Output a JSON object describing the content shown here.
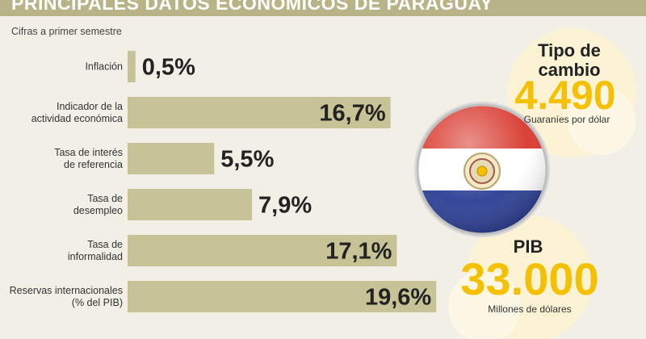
{
  "header": {
    "title": "PRINCIPALES DATOS ECONÓMICOS DE PARAGUAY"
  },
  "subtitle": "Cifras a primer semestre",
  "chart_data": {
    "type": "bar",
    "orientation": "horizontal",
    "categories": [
      [
        "Inflación"
      ],
      [
        "Indicador de la",
        "actividad económica"
      ],
      [
        "Tasa de interés",
        "de referencia"
      ],
      [
        "Tasa de",
        "desempleo"
      ],
      [
        "Tasa de",
        "informalidad"
      ],
      [
        "Reservas internacionales",
        "(% del PIB)"
      ]
    ],
    "values": [
      0.5,
      16.7,
      5.5,
      7.9,
      17.1,
      19.6
    ],
    "value_labels": [
      "0,5%",
      "16,7%",
      "5,5%",
      "7,9%",
      "17,1%",
      "19,6%"
    ],
    "bar_color": "#c8c396"
  },
  "exchange_rate": {
    "title_line1": "Tipo de",
    "title_line2": "cambio",
    "value": "4.490",
    "unit": "Guaraníes por dólar"
  },
  "gdp": {
    "title": "PIB",
    "value": "33.000",
    "unit": "Millones de dólares"
  },
  "colors": {
    "header": "#b9b487",
    "background": "#f1efe6",
    "accent_yellow": "#f5c000",
    "circle_bg": "#fbf3d3",
    "flag_red": "#d8372b",
    "flag_blue": "#2a3d93"
  }
}
